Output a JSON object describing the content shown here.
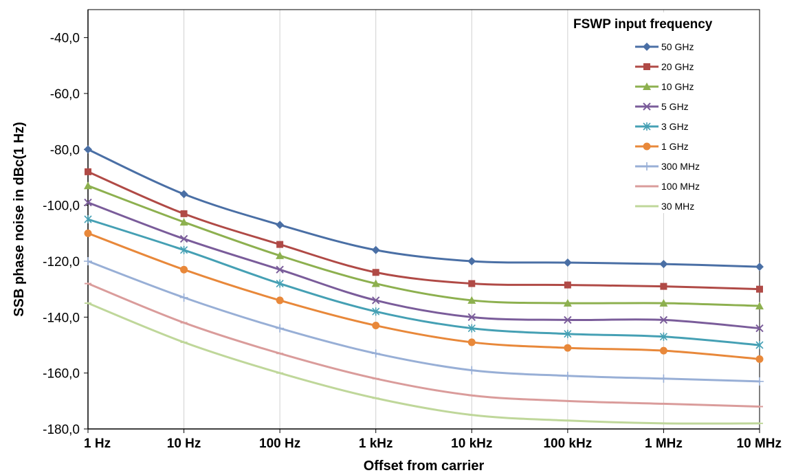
{
  "chart_data": {
    "type": "line",
    "xlabel": "Offset from carrier",
    "ylabel": "SSB phase noise in dBc(1 Hz)",
    "x_scale": "log",
    "categories": [
      "1 Hz",
      "10 Hz",
      "100 Hz",
      "1 kHz",
      "10 kHz",
      "100 kHz",
      "1 MHz",
      "10 MHz"
    ],
    "ylim": [
      -180,
      -30
    ],
    "yticks": [
      "-40,0",
      "-60,0",
      "-80,0",
      "-100,0",
      "-120,0",
      "-140,0",
      "-160,0",
      "-180,0"
    ],
    "ytick_values": [
      -40,
      -60,
      -80,
      -100,
      -120,
      -140,
      -160,
      -180
    ],
    "grid": "vertical",
    "legend": {
      "title": "FSWP input frequency",
      "position": "top-right"
    },
    "series": [
      {
        "name": "50 GHz",
        "color": "#4a6fa5",
        "marker": "diamond",
        "values": [
          -80,
          -96,
          -107,
          -116,
          -120,
          -120.5,
          -121,
          -122
        ]
      },
      {
        "name": "20 GHz",
        "color": "#b04a46",
        "marker": "square",
        "values": [
          -88,
          -103,
          -114,
          -124,
          -128,
          -128.5,
          -129,
          -130
        ]
      },
      {
        "name": "10 GHz",
        "color": "#8db04f",
        "marker": "triangle",
        "values": [
          -93,
          -106,
          -118,
          -128,
          -134,
          -135,
          -135,
          -136
        ]
      },
      {
        "name": "5 GHz",
        "color": "#7a5c9a",
        "marker": "x",
        "values": [
          -99,
          -112,
          -123,
          -134,
          -140,
          -141,
          -141,
          -144
        ]
      },
      {
        "name": "3 GHz",
        "color": "#45a0b4",
        "marker": "star",
        "values": [
          -105,
          -116,
          -128,
          -138,
          -144,
          -146,
          -147,
          -150
        ]
      },
      {
        "name": "1 GHz",
        "color": "#e8883a",
        "marker": "circle",
        "values": [
          -110,
          -123,
          -134,
          -143,
          -149,
          -151,
          -152,
          -155
        ]
      },
      {
        "name": "300 MHz",
        "color": "#98afd6",
        "marker": "plus",
        "values": [
          -120,
          -133,
          -144,
          -153,
          -159,
          -161,
          -162,
          -163
        ]
      },
      {
        "name": "100 MHz",
        "color": "#da9c9b",
        "marker": "dash",
        "values": [
          -128,
          -142,
          -153,
          -162,
          -168,
          -170,
          -171,
          -172
        ]
      },
      {
        "name": "30 MHz",
        "color": "#bfd79a",
        "marker": "dash",
        "values": [
          -135,
          -149,
          -160,
          -169,
          -175,
          -177,
          -178,
          -178
        ]
      }
    ]
  }
}
